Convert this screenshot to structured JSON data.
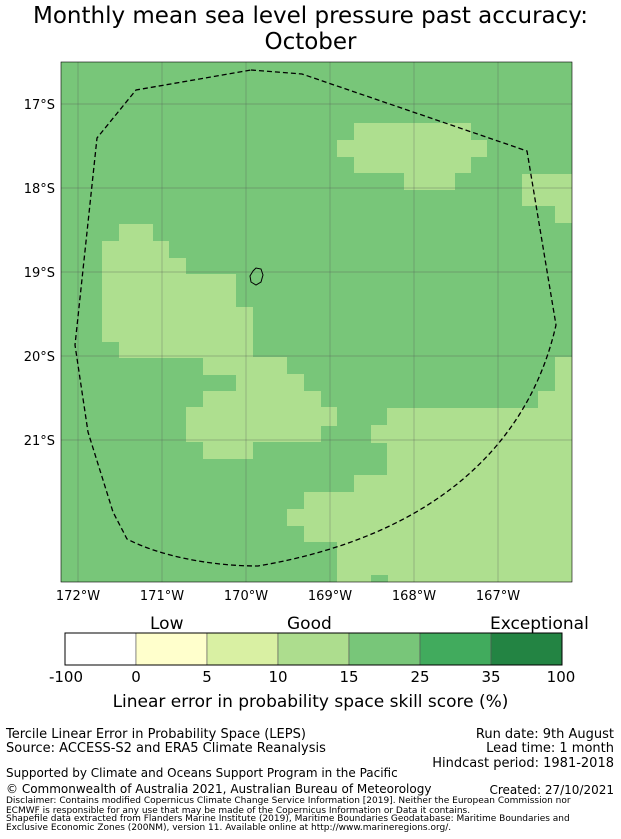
{
  "title": {
    "line1": "Monthly mean sea level pressure past accuracy:",
    "line2": "October"
  },
  "map": {
    "lat_labels": [
      "17°S",
      "18°S",
      "19°S",
      "20°S",
      "21°S"
    ],
    "lon_labels": [
      "172°W",
      "171°W",
      "170°W",
      "169°W",
      "168°W",
      "167°W"
    ],
    "lat_range": [
      -22.7,
      -16.5
    ],
    "lon_range": [
      -172.2,
      -166.2
    ],
    "grid": true,
    "skill_categories": {
      "good": "#aedf8f",
      "very_good": "#78c679"
    },
    "boundary": "Niue Exclusive Economic Zone (dashed)",
    "island": "Niue"
  },
  "legend": {
    "quality_labels": [
      "Low",
      "Good",
      "Exceptional"
    ],
    "bins": [
      {
        "from": -100,
        "to": 0,
        "color": "#ffffff"
      },
      {
        "from": 0,
        "to": 5,
        "color": "#ffffcc"
      },
      {
        "from": 5,
        "to": 10,
        "color": "#d9f0a3"
      },
      {
        "from": 10,
        "to": 15,
        "color": "#addd8e"
      },
      {
        "from": 15,
        "to": 25,
        "color": "#78c679"
      },
      {
        "from": 25,
        "to": 35,
        "color": "#41ab5d"
      },
      {
        "from": 35,
        "to": 100,
        "color": "#238443"
      }
    ],
    "ticks": [
      "-100",
      "0",
      "5",
      "10",
      "15",
      "25",
      "35",
      "100"
    ],
    "axis_label": "Linear error in probability space skill score (%)"
  },
  "info": {
    "method": "Tercile Linear Error in Probability Space (LEPS)",
    "source": "Source: ACCESS-S2 and ERA5 Climate Reanalysis",
    "run_date": "Run date: 9th August",
    "lead_time": "Lead time: 1 month",
    "hindcast": "Hindcast period: 1981-2018",
    "support": "Supported by Climate and Oceans Support Program in the Pacific",
    "copyright": "© Commonwealth of Australia 2021, Australian Bureau of Meteorology",
    "created": "Created: 27/10/2021",
    "disclaimer1": "Disclaimer: Contains modified Copernicus Climate Change Service Information [2019]. Neither the European Commission nor",
    "disclaimer2": "ECMWF is responsible for any use that may be made of the Copernicus Information or Data it contains.",
    "shapefile1": "Shapefile data extracted from Flanders Marine Institute (2019), Maritime Boundaries Geodatabase: Maritime Boundaries and",
    "shapefile2": "Exclusive Economic Zones (200NM), version 11. Available online at http://www.marineregions.org/."
  }
}
